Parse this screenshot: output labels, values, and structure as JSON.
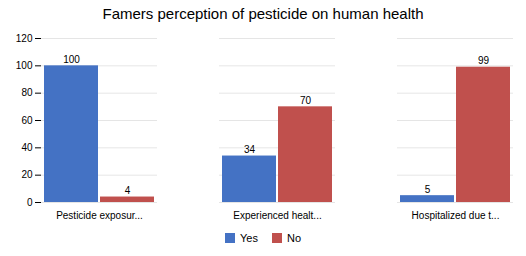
{
  "chart_data": {
    "type": "bar",
    "title": "Famers perception of pesticide on human health",
    "categories": [
      "Pesticide exposur...",
      "Experienced healt...",
      "Hospitalized due t..."
    ],
    "series": [
      {
        "name": "Yes",
        "color": "#4472C4",
        "values": [
          100,
          34,
          5
        ]
      },
      {
        "name": "No",
        "color": "#C0504D",
        "values": [
          4,
          70,
          99
        ]
      }
    ],
    "ylim": [
      0,
      120
    ],
    "yticks": [
      0,
      20,
      40,
      60,
      80,
      100,
      120
    ],
    "grid": true,
    "data_labels": true,
    "legend": "bottom"
  }
}
